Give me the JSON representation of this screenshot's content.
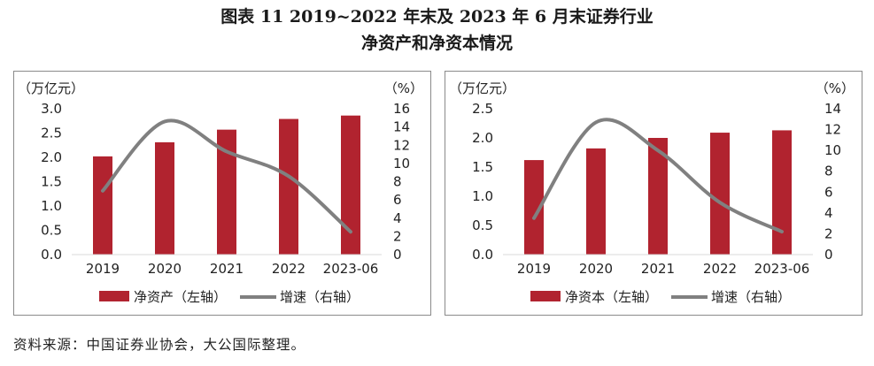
{
  "title": {
    "line1": "图表 11  2019~2022 年末及 2023 年 6 月末证券行业",
    "line2": "净资产和净资本情况"
  },
  "source": "资料来源：中国证券业协会，大公国际整理。",
  "colors": {
    "bar": "#b1232f",
    "line": "#808080"
  },
  "chart_data": [
    {
      "type": "bar",
      "categories": [
        "2019",
        "2020",
        "2021",
        "2022",
        "2023-06"
      ],
      "left_unit": "（万亿元）",
      "right_unit": "（%）",
      "ylim_left": [
        0,
        3.0
      ],
      "yticks_left": [
        "3.0",
        "2.5",
        "2.0",
        "1.5",
        "1.0",
        "0.5",
        "0.0"
      ],
      "ylim_right": [
        0,
        16
      ],
      "yticks_right": [
        "16",
        "14",
        "12",
        "10",
        "8",
        "6",
        "4",
        "2",
        "0"
      ],
      "series": [
        {
          "name": "净资产（左轴）",
          "type": "bar",
          "axis": "left",
          "values": [
            2.02,
            2.31,
            2.57,
            2.79,
            2.86
          ]
        },
        {
          "name": "增速（右轴）",
          "type": "line",
          "axis": "right",
          "values": [
            7.0,
            14.6,
            11.3,
            8.6,
            2.5
          ]
        }
      ]
    },
    {
      "type": "bar",
      "categories": [
        "2019",
        "2020",
        "2021",
        "2022",
        "2023-06"
      ],
      "left_unit": "（万亿元）",
      "right_unit": "（%）",
      "ylim_left": [
        0,
        2.5
      ],
      "yticks_left": [
        "2.5",
        "2.0",
        "1.5",
        "1.0",
        "0.5",
        "0.0"
      ],
      "ylim_right": [
        0,
        14
      ],
      "yticks_right": [
        "14",
        "12",
        "10",
        "8",
        "6",
        "4",
        "2",
        "0"
      ],
      "series": [
        {
          "name": "净资本（左轴）",
          "type": "bar",
          "axis": "left",
          "values": [
            1.62,
            1.82,
            2.0,
            2.09,
            2.13
          ]
        },
        {
          "name": "增速（右轴）",
          "type": "line",
          "axis": "right",
          "values": [
            3.5,
            12.7,
            10.0,
            5.0,
            2.2
          ]
        }
      ]
    }
  ]
}
